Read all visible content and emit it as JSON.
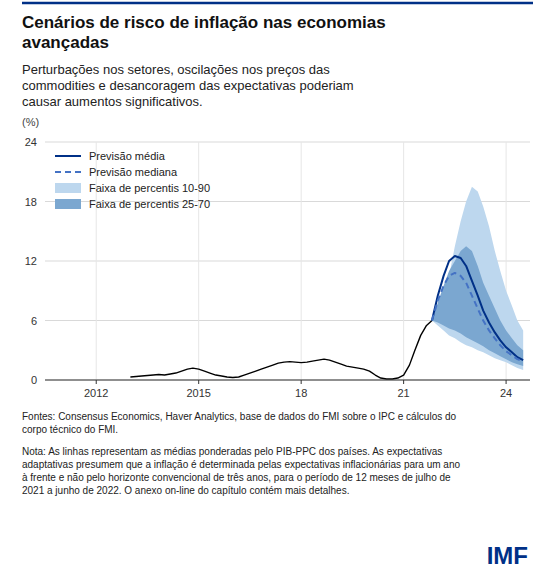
{
  "chart_data": {
    "type": "line",
    "title": "Cenários de risco de inflação nas economias\navançadas",
    "subtitle": "Perturbações nos setores, oscilações nos preços das\ncommodities e desancoragem das expectativas poderiam\ncausar aumentos significativos.",
    "y_label": "(%)",
    "footnotes": [
      "Fontes: Consensus Economics, Haver Analytics, base de dados do FMI sobre o IPC e cálculos do\ncorpo técnico do FMI.",
      "Nota: As linhas representam as médias ponderadas pelo PIB-PPC dos países. As expectativas\nadaptativas presumem que a inflação é determinada pelas expectativas inflacionárias para um ano\nà frente e não pelo horizonte convencional de três anos, para o período de 12 meses de julho de\n2021 a junho de 2022. O anexo on-line do capítulo contém mais detalhes."
    ],
    "logo": "IMF",
    "xlim": [
      2010.5,
      2024.7
    ],
    "xticks": [
      2012,
      2015,
      {
        "value": 2018,
        "label": "18"
      },
      {
        "value": 2021,
        "label": "21"
      },
      {
        "value": 2024,
        "label": "24"
      }
    ],
    "ylim": [
      0,
      24
    ],
    "yticks": [
      0,
      6,
      12,
      18,
      24
    ],
    "grid": true,
    "legend": "upper left",
    "series": [
      {
        "name": "Faixa de percentis 10-90",
        "type": "band",
        "color": "#BDD7EE",
        "x": [
          2021.83,
          2022.0,
          2022.17,
          2022.33,
          2022.5,
          2022.67,
          2022.83,
          2023.0,
          2023.17,
          2023.33,
          2023.5,
          2023.67,
          2023.83,
          2024.0,
          2024.17,
          2024.33,
          2024.5
        ],
        "upper": [
          6.0,
          7.0,
          8.5,
          10.5,
          13.5,
          16.0,
          18.0,
          19.5,
          19.0,
          17.5,
          15.5,
          13.0,
          11.0,
          9.0,
          7.5,
          6.0,
          5.0
        ],
        "lower": [
          6.0,
          5.5,
          5.0,
          4.5,
          4.2,
          3.8,
          3.5,
          3.3,
          3.0,
          2.8,
          2.5,
          2.2,
          2.0,
          1.8,
          1.5,
          1.2,
          1.0
        ]
      },
      {
        "name": "Faixa de percentis 25-70",
        "type": "band",
        "color": "#7BA7D0",
        "x": [
          2021.83,
          2022.0,
          2022.17,
          2022.33,
          2022.5,
          2022.67,
          2022.83,
          2023.0,
          2023.17,
          2023.33,
          2023.5,
          2023.67,
          2023.83,
          2024.0,
          2024.17,
          2024.33,
          2024.5
        ],
        "upper": [
          6.0,
          7.8,
          9.5,
          11.0,
          12.0,
          13.0,
          13.5,
          13.0,
          11.5,
          9.8,
          8.5,
          7.2,
          6.0,
          5.0,
          4.2,
          3.5,
          3.0
        ],
        "lower": [
          6.0,
          5.8,
          5.5,
          5.2,
          5.0,
          4.7,
          4.3,
          4.0,
          3.7,
          3.4,
          3.0,
          2.7,
          2.4,
          2.1,
          1.8,
          1.6,
          1.4
        ]
      },
      {
        "type": "line",
        "color": "#000000",
        "line_style": "solid",
        "x": [
          2013.0,
          2013.17,
          2013.33,
          2013.5,
          2013.67,
          2013.83,
          2014.0,
          2014.17,
          2014.33,
          2014.5,
          2014.67,
          2014.83,
          2015.0,
          2015.17,
          2015.33,
          2015.5,
          2015.67,
          2015.83,
          2016.0,
          2016.17,
          2016.33,
          2016.5,
          2016.67,
          2016.83,
          2017.0,
          2017.17,
          2017.33,
          2017.5,
          2017.67,
          2017.83,
          2018.0,
          2018.17,
          2018.33,
          2018.5,
          2018.67,
          2018.83,
          2019.0,
          2019.17,
          2019.33,
          2019.5,
          2019.67,
          2019.83,
          2020.0,
          2020.17,
          2020.33,
          2020.5,
          2020.67,
          2020.83,
          2021.0,
          2021.17,
          2021.33,
          2021.5,
          2021.67,
          2021.83
        ],
        "values": [
          0.3,
          0.35,
          0.4,
          0.45,
          0.5,
          0.55,
          0.5,
          0.6,
          0.7,
          0.9,
          1.1,
          1.2,
          1.1,
          0.9,
          0.7,
          0.5,
          0.4,
          0.3,
          0.25,
          0.3,
          0.5,
          0.7,
          0.9,
          1.1,
          1.3,
          1.5,
          1.7,
          1.8,
          1.85,
          1.8,
          1.75,
          1.8,
          1.9,
          2.0,
          2.1,
          2.0,
          1.8,
          1.6,
          1.4,
          1.3,
          1.2,
          1.1,
          0.9,
          0.5,
          0.2,
          0.1,
          0.1,
          0.2,
          0.5,
          1.5,
          3.0,
          4.5,
          5.5,
          6.0
        ]
      },
      {
        "name": "Previsão média",
        "type": "line",
        "color": "#003087",
        "line_style": "solid",
        "x": [
          2021.83,
          2022.0,
          2022.17,
          2022.33,
          2022.5,
          2022.67,
          2022.83,
          2023.0,
          2023.17,
          2023.33,
          2023.5,
          2023.67,
          2023.83,
          2024.0,
          2024.17,
          2024.33,
          2024.5
        ],
        "values": [
          6.0,
          8.5,
          10.5,
          12.0,
          12.5,
          12.3,
          11.5,
          10.0,
          8.5,
          7.0,
          5.8,
          4.8,
          4.0,
          3.3,
          2.8,
          2.3,
          2.0
        ]
      },
      {
        "name": "Previsão mediana",
        "type": "line",
        "color": "#4472C4",
        "line_style": "dashed",
        "x": [
          2021.83,
          2022.0,
          2022.17,
          2022.33,
          2022.5,
          2022.67,
          2022.83,
          2023.0,
          2023.17,
          2023.33,
          2023.5,
          2023.67,
          2023.83,
          2024.0,
          2024.17,
          2024.33,
          2024.5
        ],
        "values": [
          6.0,
          8.0,
          9.5,
          10.5,
          10.8,
          10.5,
          9.8,
          8.5,
          7.2,
          6.0,
          5.0,
          4.2,
          3.5,
          2.9,
          2.5,
          2.1,
          1.9
        ]
      }
    ]
  }
}
